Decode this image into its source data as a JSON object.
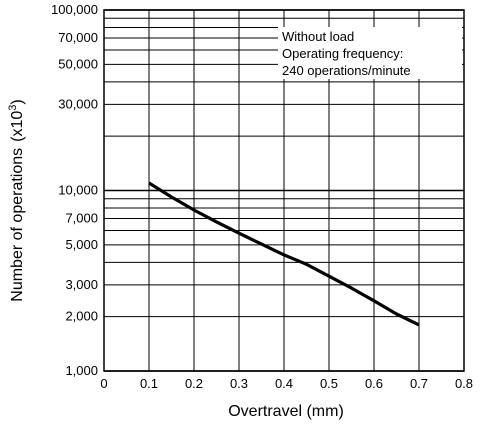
{
  "chart_data": {
    "type": "line",
    "xlabel": "Overtravel (mm)",
    "ylabel": "Number of operations",
    "ylabel_unit_base": "(x10",
    "ylabel_unit_exp": "3",
    "ylabel_unit_close": ")",
    "x_ticks": [
      "0",
      "0.1",
      "0.2",
      "0.3",
      "0.4",
      "0.5",
      "0.6",
      "0.7",
      "0.8"
    ],
    "x_tick_values": [
      0,
      0.1,
      0.2,
      0.3,
      0.4,
      0.5,
      0.6,
      0.7,
      0.8
    ],
    "xlim": [
      0,
      0.8
    ],
    "y_scale": "log",
    "ylim": [
      1000,
      100000
    ],
    "y_tick_labels": [
      "1,000",
      "2,000",
      "3,000",
      "5,000",
      "7,000",
      "10,000",
      "30,000",
      "50,000",
      "70,000",
      "100,000"
    ],
    "y_tick_values": [
      1000,
      2000,
      3000,
      5000,
      7000,
      10000,
      30000,
      50000,
      70000,
      100000
    ],
    "y_gridlines": [
      1000,
      2000,
      3000,
      4000,
      5000,
      6000,
      7000,
      8000,
      9000,
      10000,
      20000,
      30000,
      40000,
      50000,
      60000,
      70000,
      80000,
      90000,
      100000
    ],
    "grid": true,
    "annotation": [
      "Without load",
      "Operating frequency:",
      "240 operations/minute"
    ],
    "series": [
      {
        "x": [
          0.1,
          0.15,
          0.2,
          0.25,
          0.3,
          0.35,
          0.4,
          0.45,
          0.5,
          0.55,
          0.6,
          0.65,
          0.7
        ],
        "y": [
          11000,
          9200,
          7800,
          6700,
          5800,
          5050,
          4400,
          3900,
          3350,
          2880,
          2450,
          2070,
          1800
        ]
      }
    ]
  }
}
